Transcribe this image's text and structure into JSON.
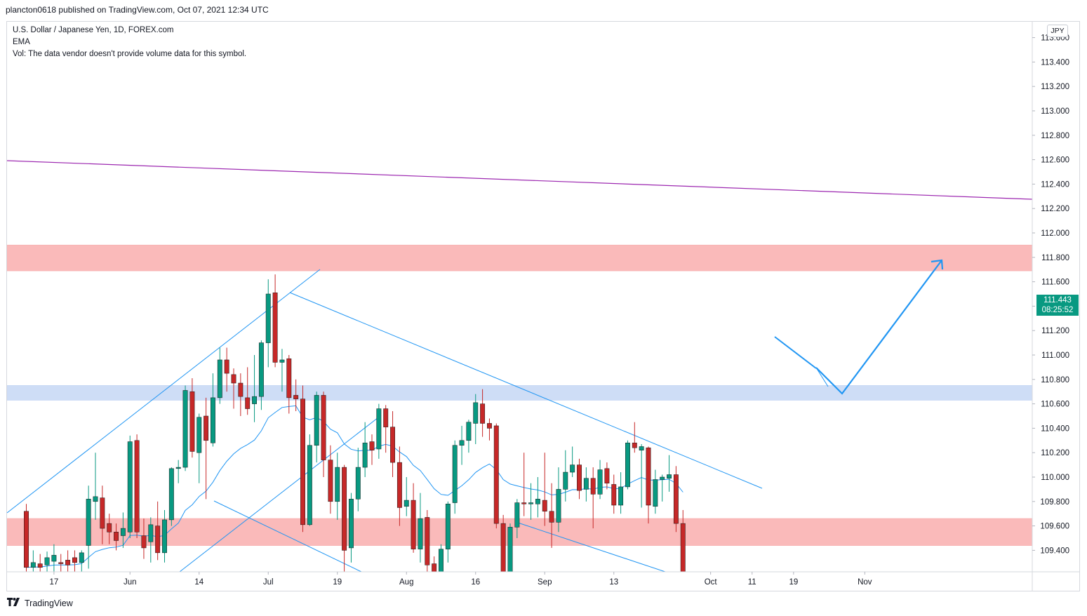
{
  "header": {
    "published": "plancton0618 published on TradingView.com, Oct 07, 2021 12:34 UTC"
  },
  "legend": {
    "symbol": "U.S. Dollar / Japanese Yen, 1D, FOREX.com",
    "indicator": "EMA",
    "volume_note": "Vol: The data vendor doesn't provide volume data for this symbol."
  },
  "currency_tag": "JPY",
  "last_price": {
    "price": "111.443",
    "countdown": "08:25:52",
    "color": "#089981"
  },
  "footer": {
    "brand": "TradingView",
    "logo": "tradingview-logo-icon"
  },
  "colors": {
    "up": "#089981",
    "down": "#c62828",
    "trendline": "#2196f3",
    "channel_top": "#9c27b0",
    "resistance_zone": "#f9b3b3",
    "support_zone": "#c9d9f5"
  },
  "chart_data": {
    "type": "candlestick",
    "symbol": "USDJPY",
    "timeframe": "1D",
    "ylim": [
      109.2,
      113.7
    ],
    "y_ticks": [
      "109.400",
      "109.600",
      "109.800",
      "110.000",
      "110.200",
      "110.400",
      "110.600",
      "110.800",
      "111.000",
      "111.200",
      "111.400",
      "111.600",
      "111.800",
      "112.000",
      "112.200",
      "112.400",
      "112.600",
      "112.800",
      "113.000",
      "113.200",
      "113.400",
      "113.600"
    ],
    "x_ticks": [
      {
        "label": "17",
        "day": 4
      },
      {
        "label": "Jun",
        "day": 15
      },
      {
        "label": "14",
        "day": 25
      },
      {
        "label": "Jul",
        "day": 35
      },
      {
        "label": "19",
        "day": 45
      },
      {
        "label": "Aug",
        "day": 55
      },
      {
        "label": "16",
        "day": 65
      },
      {
        "label": "Sep",
        "day": 75
      },
      {
        "label": "13",
        "day": 85
      },
      {
        "label": "Oct",
        "day": 99
      },
      {
        "label": "11",
        "day": 105
      },
      {
        "label": "19",
        "day": 111
      },
      {
        "label": "Nov",
        "day": 121
      }
    ],
    "candles": [
      [
        109.72,
        109.26,
        109.78,
        109.2
      ],
      [
        109.26,
        109.3,
        109.4,
        109.18
      ],
      [
        109.29,
        109.26,
        109.37,
        109.15
      ],
      [
        109.28,
        109.34,
        109.39,
        109.2
      ],
      [
        109.31,
        109.36,
        109.45,
        109.2
      ],
      [
        109.3,
        109.29,
        109.37,
        109.18
      ],
      [
        109.32,
        109.28,
        109.4,
        109.2
      ],
      [
        109.34,
        109.3,
        109.4,
        109.2
      ],
      [
        109.3,
        109.38,
        109.4,
        109.2
      ],
      [
        109.44,
        109.82,
        109.93,
        109.25
      ],
      [
        109.8,
        109.84,
        110.2,
        109.65
      ],
      [
        109.83,
        109.58,
        109.93,
        109.45
      ],
      [
        109.62,
        109.55,
        109.7,
        109.45
      ],
      [
        109.55,
        109.48,
        109.62,
        109.4
      ],
      [
        109.52,
        109.58,
        109.71,
        109.42
      ],
      [
        109.55,
        110.29,
        110.34,
        109.5
      ],
      [
        110.3,
        109.55,
        110.35,
        109.5
      ],
      [
        109.52,
        109.42,
        109.66,
        109.33
      ],
      [
        109.47,
        109.61,
        109.67,
        109.3
      ],
      [
        109.6,
        109.38,
        109.8,
        109.32
      ],
      [
        109.38,
        109.65,
        109.73,
        109.3
      ],
      [
        109.65,
        110.07,
        110.08,
        109.6
      ],
      [
        110.07,
        110.08,
        110.14,
        109.95
      ],
      [
        110.08,
        110.71,
        110.75,
        110.05
      ],
      [
        110.7,
        110.21,
        110.81,
        110.16
      ],
      [
        110.2,
        110.49,
        110.52,
        109.95
      ],
      [
        110.5,
        110.3,
        110.65,
        109.82
      ],
      [
        110.28,
        110.65,
        110.85,
        110.25
      ],
      [
        110.65,
        110.96,
        111.06,
        110.6
      ],
      [
        110.96,
        110.85,
        111.06,
        110.7
      ],
      [
        110.84,
        110.77,
        110.89,
        110.56
      ],
      [
        110.77,
        110.66,
        110.85,
        110.5
      ],
      [
        110.65,
        110.56,
        110.9,
        110.51
      ],
      [
        110.6,
        110.66,
        111.0,
        110.45
      ],
      [
        110.66,
        111.1,
        111.12,
        110.55
      ],
      [
        111.1,
        111.5,
        111.62,
        110.9
      ],
      [
        111.51,
        110.94,
        111.66,
        110.9
      ],
      [
        110.94,
        110.96,
        111.05,
        110.7
      ],
      [
        110.97,
        110.65,
        111.0,
        110.52
      ],
      [
        110.67,
        110.64,
        110.8,
        110.54
      ],
      [
        110.64,
        109.61,
        110.75,
        109.55
      ],
      [
        109.61,
        110.26,
        110.35,
        109.6
      ],
      [
        110.26,
        110.67,
        110.7,
        110.12
      ],
      [
        110.67,
        110.14,
        110.7,
        110.0
      ],
      [
        110.14,
        109.8,
        110.26,
        109.7
      ],
      [
        109.8,
        110.08,
        110.2,
        109.65
      ],
      [
        110.08,
        109.4,
        110.1,
        109.2
      ],
      [
        109.42,
        109.82,
        109.87,
        109.3
      ],
      [
        109.82,
        110.08,
        110.24,
        109.72
      ],
      [
        110.08,
        110.28,
        110.45,
        110.0
      ],
      [
        110.29,
        110.22,
        110.35,
        110.1
      ],
      [
        110.23,
        110.56,
        110.6,
        110.15
      ],
      [
        110.56,
        110.41,
        110.59,
        110.2
      ],
      [
        110.41,
        110.12,
        110.54,
        110.0
      ],
      [
        110.12,
        109.75,
        110.25,
        109.6
      ],
      [
        109.76,
        109.81,
        110.0,
        109.68
      ],
      [
        109.81,
        109.41,
        109.95,
        109.38
      ],
      [
        109.41,
        109.66,
        109.87,
        109.3
      ],
      [
        109.67,
        109.28,
        109.73,
        109.22
      ],
      [
        109.29,
        109.19,
        109.35,
        109.15
      ],
      [
        109.17,
        109.41,
        109.45,
        109.1
      ],
      [
        109.41,
        109.78,
        109.8,
        109.3
      ],
      [
        109.79,
        110.26,
        110.3,
        109.7
      ],
      [
        110.26,
        110.3,
        110.42,
        110.1
      ],
      [
        110.3,
        110.45,
        110.47,
        110.2
      ],
      [
        110.44,
        110.61,
        110.68,
        110.27
      ],
      [
        110.6,
        110.44,
        110.72,
        110.33
      ],
      [
        110.44,
        110.4,
        110.48,
        110.3
      ],
      [
        110.42,
        109.62,
        110.44,
        109.58
      ],
      [
        109.62,
        109.21,
        109.69,
        109.05
      ],
      [
        109.22,
        109.59,
        109.62,
        109.1
      ],
      [
        109.59,
        109.79,
        109.82,
        109.5
      ],
      [
        109.79,
        109.78,
        110.2,
        109.68
      ],
      [
        109.78,
        109.79,
        109.95,
        109.65
      ],
      [
        109.78,
        109.82,
        110.0,
        109.67
      ],
      [
        109.81,
        109.72,
        110.2,
        109.6
      ],
      [
        109.72,
        109.63,
        109.95,
        109.42
      ],
      [
        109.63,
        109.9,
        110.08,
        109.55
      ],
      [
        109.9,
        110.04,
        110.22,
        109.8
      ],
      [
        110.04,
        110.1,
        110.25,
        110.0
      ],
      [
        110.1,
        109.89,
        110.15,
        109.82
      ],
      [
        109.9,
        109.99,
        110.08,
        109.8
      ],
      [
        109.99,
        109.86,
        110.08,
        109.58
      ],
      [
        109.86,
        110.06,
        110.14,
        109.82
      ],
      [
        110.07,
        109.95,
        110.12,
        109.9
      ],
      [
        109.94,
        109.77,
        110.02,
        109.7
      ],
      [
        109.77,
        109.92,
        110.04,
        109.7
      ],
      [
        109.92,
        110.28,
        110.3,
        109.9
      ],
      [
        110.28,
        110.24,
        110.45,
        110.2
      ],
      [
        110.22,
        110.25,
        110.27,
        109.75
      ],
      [
        110.24,
        109.77,
        110.25,
        109.62
      ],
      [
        109.76,
        109.98,
        110.06,
        109.7
      ],
      [
        109.98,
        110.0,
        110.02,
        109.8
      ],
      [
        109.99,
        110.02,
        110.18,
        109.88
      ],
      [
        110.02,
        109.62,
        110.09,
        109.55
      ],
      [
        109.62,
        109.2,
        109.73,
        109.2
      ]
    ],
    "zones": [
      {
        "from": 111.69,
        "to": 111.9,
        "color": "#f9b3b3",
        "label": "resistance"
      },
      {
        "from": 110.63,
        "to": 110.75,
        "color": "#c9d9f5",
        "label": "support"
      },
      {
        "from": 109.44,
        "to": 109.66,
        "color": "#f9b3b3",
        "label": "demand"
      }
    ],
    "annotation": "projected bounce then rise toward resistance"
  }
}
